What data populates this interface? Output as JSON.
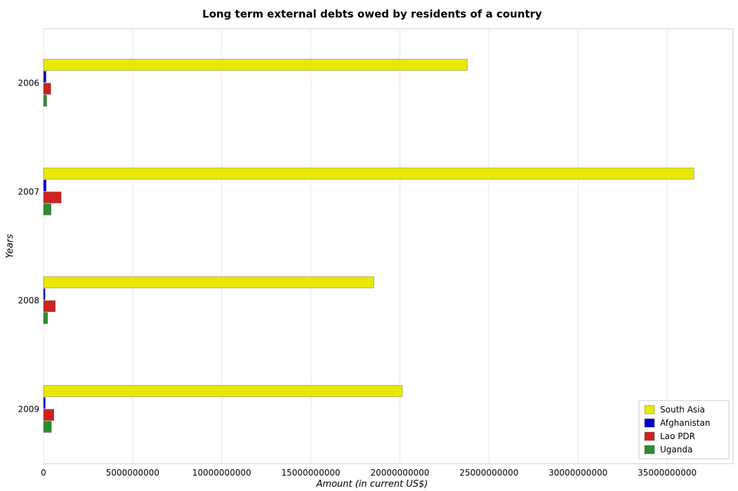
{
  "chart_data": {
    "type": "bar",
    "orientation": "horizontal",
    "title": "Long term external debts owed by residents of a country",
    "xlabel": "Amount (in current US$)",
    "ylabel": "Years",
    "categories": [
      "2006",
      "2007",
      "2008",
      "2009"
    ],
    "series": [
      {
        "name": "South Asia",
        "color": "#e8e800",
        "values": [
          23780000000,
          36500000000,
          18540000000,
          20140000000
        ]
      },
      {
        "name": "Afghanistan",
        "color": "#0000cc",
        "values": [
          140000000,
          150000000,
          90000000,
          100000000
        ]
      },
      {
        "name": "Lao PDR",
        "color": "#cc2222",
        "values": [
          410000000,
          990000000,
          660000000,
          580000000
        ]
      },
      {
        "name": "Uganda",
        "color": "#2e8b2e",
        "values": [
          180000000,
          420000000,
          230000000,
          440000000
        ]
      }
    ],
    "xticks": [
      0,
      5000000000,
      10000000000,
      15000000000,
      20000000000,
      25000000000,
      30000000000,
      35000000000
    ],
    "xtick_labels": [
      "0",
      "5000000000",
      "10000000000",
      "15000000000",
      "20000000000",
      "25000000000",
      "30000000000",
      "35000000000"
    ],
    "xlim": [
      0,
      38700000000
    ],
    "grid": true,
    "legend_position": "bottom-right"
  }
}
